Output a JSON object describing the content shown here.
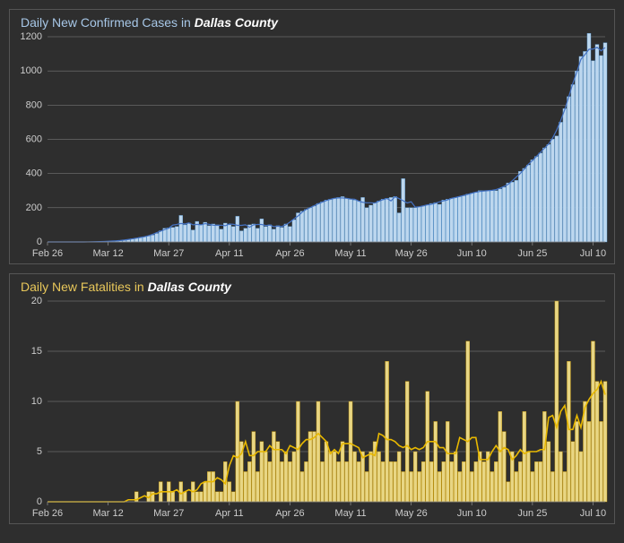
{
  "background_color": "#2e2e2e",
  "border_color": "#555555",
  "grid_color": "#888888",
  "axis_text_color": "#cccccc",
  "x_start_label": "Feb 26",
  "x_tick_interval_days": 15,
  "x_tick_labels": [
    "Feb 26",
    "Mar 12",
    "Mar 27",
    "Apr 11",
    "Apr 26",
    "May 11",
    "May 26",
    "Jun 10",
    "Jun 25",
    "Jul 10"
  ],
  "title_fontsize": 14,
  "axis_fontsize": 11,
  "cases_chart": {
    "type": "bar+line",
    "title_prefix": "Daily New Confirmed Cases in ",
    "title_county": "Dallas County",
    "title_color": "#a7c7e7",
    "bar_fill": "#bdd7ee",
    "bar_stroke": "#5b9bd5",
    "line_color": "#4472c4",
    "line_width": 1.2,
    "ymin": 0,
    "ymax": 1200,
    "ytick_step": 200,
    "ytick_labels": [
      "0",
      "200",
      "400",
      "600",
      "800",
      "1000",
      "1200"
    ],
    "n_days": 139,
    "values": [
      0,
      0,
      0,
      0,
      0,
      0,
      0,
      0,
      0,
      0,
      0,
      0,
      1,
      2,
      3,
      4,
      5,
      6,
      8,
      10,
      14,
      18,
      22,
      26,
      30,
      35,
      40,
      50,
      65,
      80,
      82,
      85,
      90,
      155,
      100,
      110,
      70,
      120,
      100,
      115,
      95,
      105,
      100,
      75,
      110,
      100,
      90,
      150,
      65,
      80,
      100,
      105,
      80,
      135,
      90,
      100,
      75,
      95,
      85,
      105,
      90,
      130,
      170,
      180,
      190,
      200,
      210,
      225,
      235,
      245,
      250,
      255,
      260,
      265,
      255,
      250,
      245,
      240,
      260,
      200,
      215,
      230,
      240,
      250,
      255,
      260,
      265,
      170,
      370,
      200,
      200,
      200,
      205,
      210,
      215,
      225,
      230,
      220,
      245,
      250,
      255,
      260,
      265,
      270,
      280,
      285,
      290,
      300,
      300,
      300,
      300,
      300,
      310,
      320,
      345,
      350,
      360,
      413,
      430,
      450,
      480,
      500,
      520,
      550,
      570,
      601,
      620,
      700,
      780,
      850,
      920,
      1000,
      1085,
      1114,
      1220,
      1060,
      1155,
      1090,
      1165
    ],
    "moving_avg_window": 5
  },
  "fatalities_chart": {
    "type": "bar+line",
    "title_prefix": "Daily New Fatalities in ",
    "title_county": "Dallas County",
    "title_color": "#e8c75a",
    "bar_fill": "#e8d684",
    "bar_stroke": "#bf9000",
    "line_color": "#e8b800",
    "line_width": 1.6,
    "ymin": 0,
    "ymax": 20,
    "ytick_step": 5,
    "ytick_labels": [
      "0",
      "5",
      "10",
      "15",
      "20"
    ],
    "n_days": 139,
    "values": [
      0,
      0,
      0,
      0,
      0,
      0,
      0,
      0,
      0,
      0,
      0,
      0,
      0,
      0,
      0,
      0,
      0,
      0,
      0,
      0,
      0,
      0,
      1,
      0,
      0,
      1,
      1,
      0,
      2,
      0,
      2,
      1,
      0,
      2,
      1,
      0,
      2,
      1,
      1,
      2,
      3,
      3,
      1,
      1,
      4,
      2,
      1,
      10,
      6,
      3,
      4,
      7,
      3,
      6,
      5,
      4,
      7,
      6,
      4,
      5,
      4,
      5,
      10,
      3,
      4,
      7,
      7,
      10,
      4,
      6,
      5,
      5,
      4,
      6,
      4,
      10,
      5,
      4,
      5,
      3,
      5,
      6,
      5,
      4,
      14,
      4,
      4,
      5,
      3,
      12,
      3,
      5,
      3,
      4,
      11,
      4,
      8,
      3,
      4,
      8,
      4,
      5,
      3,
      4,
      16,
      3,
      4,
      5,
      4,
      5,
      3,
      4,
      9,
      7,
      2,
      5,
      3,
      4,
      9,
      5,
      3,
      4,
      4,
      9,
      6,
      3,
      20,
      5,
      3,
      14,
      6,
      8,
      5,
      10,
      8,
      16,
      12,
      8,
      12
    ],
    "moving_avg_window": 5
  }
}
